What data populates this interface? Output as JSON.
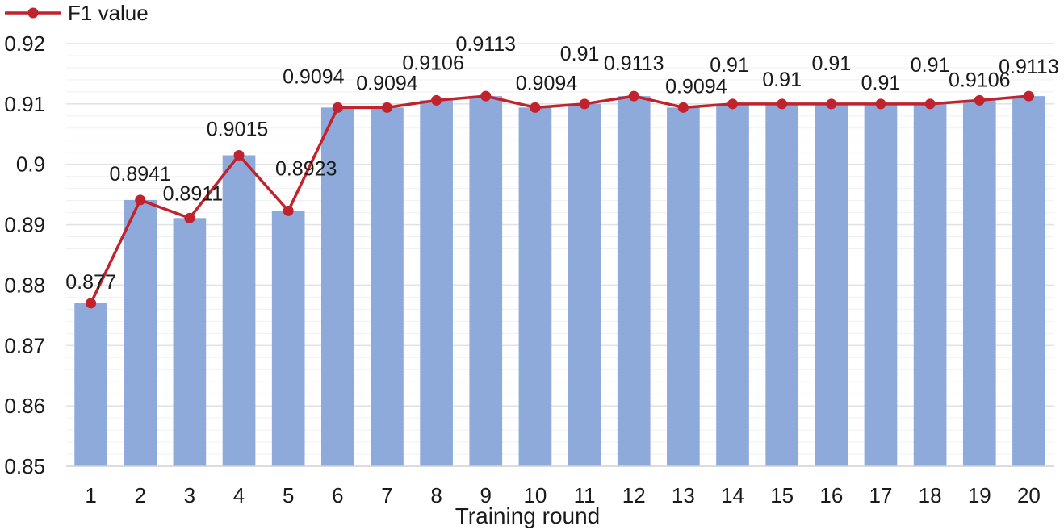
{
  "chart_data": {
    "type": "bar",
    "title": "",
    "xlabel": "Training round",
    "ylabel": "",
    "categories": [
      "1",
      "2",
      "3",
      "4",
      "5",
      "6",
      "7",
      "8",
      "9",
      "10",
      "11",
      "12",
      "13",
      "14",
      "15",
      "16",
      "17",
      "18",
      "19",
      "20"
    ],
    "series": [
      {
        "name": "F1 value",
        "render": "bar+line",
        "values": [
          0.877,
          0.8941,
          0.8911,
          0.9015,
          0.8923,
          0.9094,
          0.9094,
          0.9106,
          0.9113,
          0.9094,
          0.91,
          0.9113,
          0.9094,
          0.91,
          0.91,
          0.91,
          0.91,
          0.91,
          0.9106,
          0.9113
        ],
        "labels": [
          "0.877",
          "0.8941",
          "0.8911",
          "0.9015",
          "0.8923",
          "0.9094",
          "0.9094",
          "0.9106",
          "0.9113",
          "0.9094",
          "0.91",
          "0.9113",
          "0.9094",
          "0.91",
          "0.91",
          "0.91",
          "0.91",
          "0.91",
          "0.9106",
          "0.9113"
        ]
      }
    ],
    "ylim": [
      0.85,
      0.92
    ],
    "yticks": [
      "0.85",
      "0.86",
      "0.87",
      "0.88",
      "0.89",
      "0.9",
      "0.91",
      "0.92"
    ],
    "grid": true,
    "legend": "top-left",
    "colors": {
      "bar": "#8eaadb",
      "line": "#c0232d",
      "grid": "#e3e3e3",
      "axis": "#d0d0d0"
    }
  }
}
